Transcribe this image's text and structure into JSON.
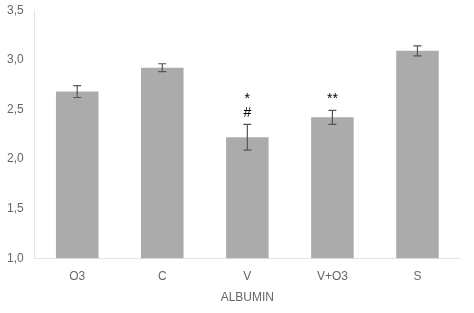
{
  "chart_data": {
    "type": "bar",
    "categories": [
      "O3",
      "C",
      "V",
      "V+O3",
      "S"
    ],
    "values": [
      2.68,
      2.92,
      2.22,
      2.42,
      3.09
    ],
    "errors": [
      0.06,
      0.04,
      0.13,
      0.07,
      0.05
    ],
    "color": "#ABABAB",
    "x_label": "ALBUMIN",
    "ylim": [
      1.0,
      3.5
    ],
    "yticks": [
      {
        "value": 1.0,
        "label": "1,0"
      },
      {
        "value": 1.5,
        "label": "1,5"
      },
      {
        "value": 2.0,
        "label": "2,0"
      },
      {
        "value": 2.5,
        "label": "2,5"
      },
      {
        "value": 3.0,
        "label": "3,0"
      },
      {
        "value": 3.5,
        "label": "3,5"
      }
    ],
    "annotations": [
      {
        "category": "V",
        "text": "*"
      },
      {
        "category": "V",
        "text": "#"
      },
      {
        "category": "V+O3",
        "text": "**"
      }
    ],
    "grid": false
  }
}
